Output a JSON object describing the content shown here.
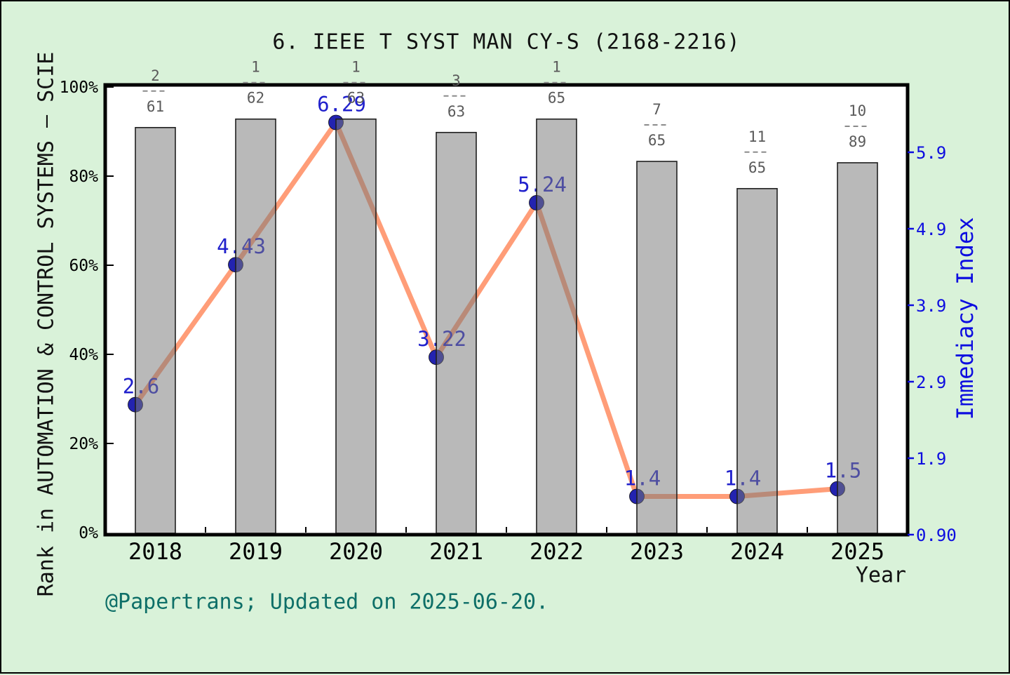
{
  "title": "6. IEEE T SYST MAN CY-S (2168-2216)",
  "footer": "@Papertrans; Updated on 2025-06-20.",
  "x_axis": {
    "title": "Year"
  },
  "left_axis": {
    "title": "Rank in AUTOMATION & CONTROL SYSTEMS — SCIE"
  },
  "right_axis": {
    "title": "Immediacy Index"
  },
  "colors": {
    "background": "#d9f2d9",
    "plot_background": "#ffffff",
    "bar_fill": "#787878",
    "bar_border": "#1f1f1f",
    "line": "#ff9d78",
    "marker": "#2323b0",
    "value_label": "#2020cc",
    "right_axis_blue": "#0d0de0",
    "fraction_gray": "#5a5a5a",
    "footer_teal": "#0e6f68",
    "axis_black": "#000000"
  },
  "chart_data": {
    "type": "bar+line",
    "categories": [
      "2018",
      "2019",
      "2020",
      "2021",
      "2022",
      "2023",
      "2024",
      "2025"
    ],
    "series": [
      {
        "name": "Rank in category (bars, left axis %)",
        "type": "bar",
        "unit": "%",
        "values": [
          90.9,
          92.8,
          92.8,
          89.8,
          92.8,
          83.3,
          77.2,
          83.0
        ],
        "rank_fractions": [
          {
            "numerator": "2",
            "denominator": "61"
          },
          {
            "numerator": "1",
            "denominator": "62"
          },
          {
            "numerator": "1",
            "denominator": "63"
          },
          {
            "numerator": "3",
            "denominator": "63"
          },
          {
            "numerator": "1",
            "denominator": "65"
          },
          {
            "numerator": "7",
            "denominator": "65"
          },
          {
            "numerator": "11",
            "denominator": "65"
          },
          {
            "numerator": "10",
            "denominator": "89"
          }
        ]
      },
      {
        "name": "Immediacy Index (line, right axis)",
        "type": "line",
        "values": [
          2.6,
          4.43,
          6.29,
          3.22,
          5.24,
          1.4,
          1.4,
          1.5
        ],
        "labels": [
          "2.6",
          "4.43",
          "6.29",
          "3.22",
          "5.24",
          "1.4",
          "1.4",
          "1.5"
        ]
      }
    ],
    "left_ticks": [
      "0%",
      "20%",
      "40%",
      "60%",
      "80%",
      "100%"
    ],
    "left_tick_values": [
      0,
      20,
      40,
      60,
      80,
      100
    ],
    "right_ticks": [
      "0.90",
      "1.9",
      "2.9",
      "3.9",
      "4.9",
      "5.9"
    ],
    "right_tick_values": [
      0.9,
      1.9,
      2.9,
      3.9,
      4.9,
      5.9
    ],
    "left_ylim": [
      0,
      100
    ],
    "grid": false,
    "legend": "none"
  }
}
